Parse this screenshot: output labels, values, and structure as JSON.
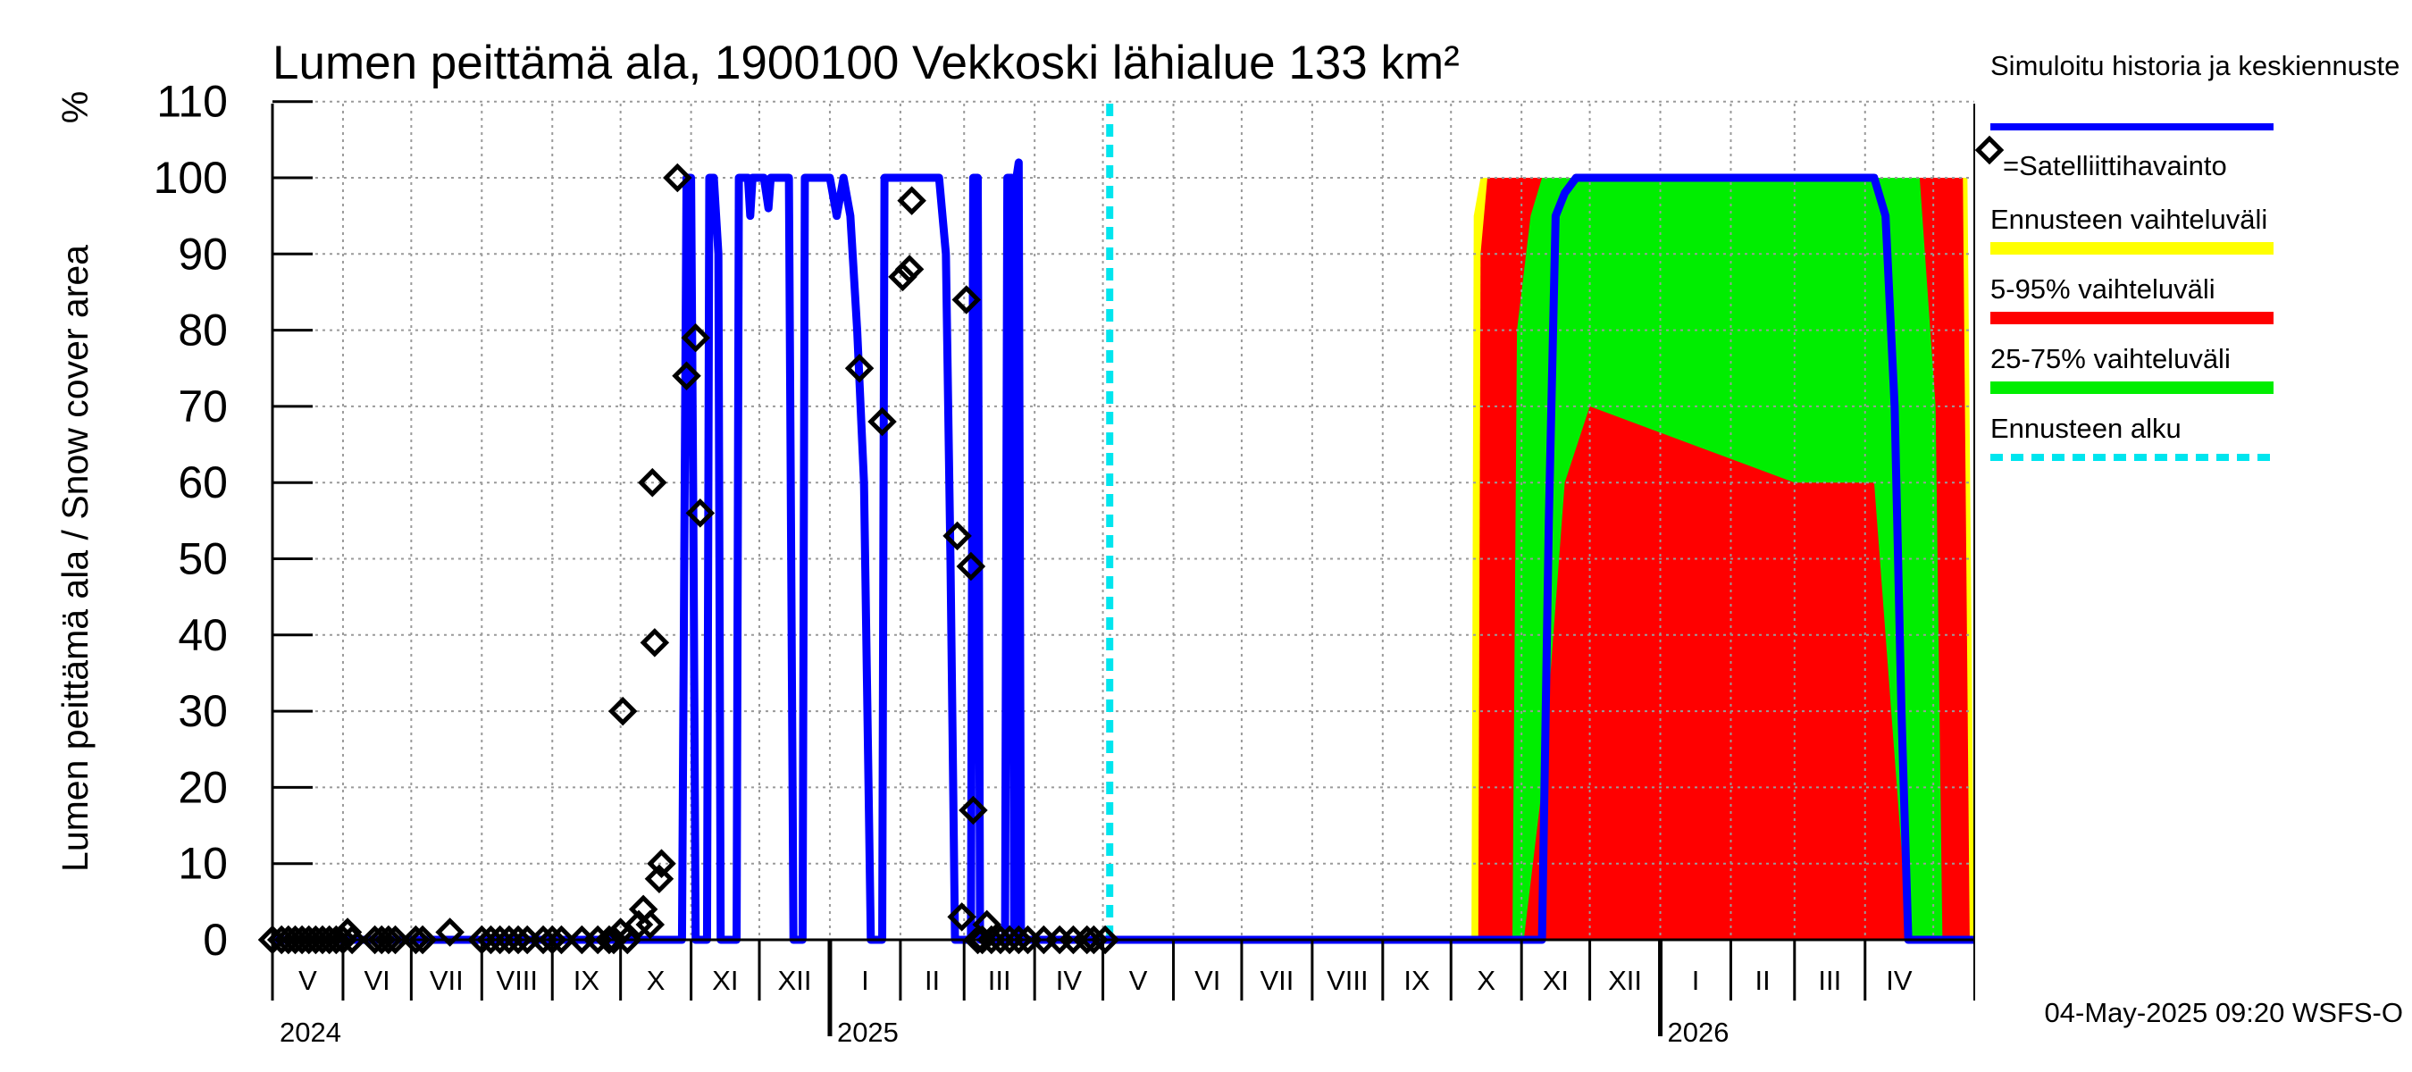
{
  "chart_data": {
    "type": "area",
    "title": "Lumen peittämä ala, 1900100 Vekkoski lähialue 133 km²",
    "ylabel": "Lumen peittämä ala / Snow cover area",
    "yunit": "%",
    "ylim": [
      0,
      110
    ],
    "yticks": [
      "0",
      "10",
      "20",
      "30",
      "40",
      "50",
      "60",
      "70",
      "80",
      "90",
      "100",
      "110"
    ],
    "xlim": [
      "2024-05-01",
      "2026-05-19"
    ],
    "grid": true,
    "months": [
      "V",
      "VI",
      "VII",
      "VIII",
      "IX",
      "X",
      "XI",
      "XII",
      "I",
      "II",
      "III",
      "IV",
      "V",
      "VI",
      "VII",
      "VIII",
      "IX",
      "X",
      "XI",
      "XII",
      "I",
      "II",
      "III",
      "IV"
    ],
    "years": [
      "2024",
      "2025",
      "2026"
    ],
    "forecast_start": "2025-05-04",
    "legend": {
      "position": "right",
      "entries": [
        {
          "label": "Simuloitu historia ja keskiennuste",
          "color": "#0000ff",
          "style": "line"
        },
        {
          "label": "=Satelliittihavainto",
          "color": "#000000",
          "style": "diamond"
        },
        {
          "label": "Ennusteen vaihteluväli",
          "color": "#ffff00",
          "style": "line"
        },
        {
          "label": "5-95% vaihteluväli",
          "color": "#ff0000",
          "style": "line"
        },
        {
          "label": "25-75% vaihteluväli",
          "color": "#00ee00",
          "style": "line"
        },
        {
          "label": "Ennusteen alku",
          "color": "#00e5ee",
          "style": "dashed"
        }
      ]
    },
    "series": [
      {
        "name": "Simuloitu historia ja keskiennuste",
        "color": "#0000ff",
        "points": [
          [
            "2024-05-01",
            0
          ],
          [
            "2024-10-28",
            0
          ],
          [
            "2024-10-30",
            100
          ],
          [
            "2024-11-01",
            100
          ],
          [
            "2024-11-02",
            55
          ],
          [
            "2024-11-03",
            0
          ],
          [
            "2024-11-08",
            0
          ],
          [
            "2024-11-09",
            100
          ],
          [
            "2024-11-11",
            100
          ],
          [
            "2024-11-13",
            90
          ],
          [
            "2024-11-14",
            0
          ],
          [
            "2024-11-21",
            0
          ],
          [
            "2024-11-22",
            100
          ],
          [
            "2024-11-26",
            100
          ],
          [
            "2024-11-27",
            95
          ],
          [
            "2024-11-28",
            100
          ],
          [
            "2024-12-03",
            100
          ],
          [
            "2024-12-05",
            96
          ],
          [
            "2024-12-06",
            100
          ],
          [
            "2024-12-14",
            100
          ],
          [
            "2024-12-16",
            0
          ],
          [
            "2024-12-20",
            0
          ],
          [
            "2024-12-21",
            100
          ],
          [
            "2025-01-01",
            100
          ],
          [
            "2025-01-04",
            95
          ],
          [
            "2025-01-07",
            100
          ],
          [
            "2025-01-10",
            95
          ],
          [
            "2025-01-13",
            80
          ],
          [
            "2025-01-16",
            60
          ],
          [
            "2025-01-19",
            0
          ],
          [
            "2025-01-24",
            0
          ],
          [
            "2025-01-25",
            100
          ],
          [
            "2025-02-18",
            100
          ],
          [
            "2025-02-21",
            90
          ],
          [
            "2025-02-23",
            50
          ],
          [
            "2025-02-25",
            0
          ],
          [
            "2025-03-04",
            0
          ],
          [
            "2025-03-05",
            100
          ],
          [
            "2025-03-07",
            100
          ],
          [
            "2025-03-08",
            0
          ],
          [
            "2025-03-19",
            0
          ],
          [
            "2025-03-20",
            100
          ],
          [
            "2025-03-22",
            100
          ],
          [
            "2025-03-23",
            0
          ],
          [
            "2025-03-24",
            100
          ],
          [
            "2025-03-25",
            102
          ],
          [
            "2025-03-26",
            0
          ],
          [
            "2025-11-10",
            0
          ],
          [
            "2025-11-13",
            55
          ],
          [
            "2025-11-16",
            95
          ],
          [
            "2025-11-20",
            98
          ],
          [
            "2025-11-25",
            100
          ],
          [
            "2026-04-05",
            100
          ],
          [
            "2026-04-10",
            95
          ],
          [
            "2026-04-14",
            70
          ],
          [
            "2026-04-17",
            30
          ],
          [
            "2026-04-20",
            0
          ],
          [
            "2026-05-19",
            0
          ]
        ]
      },
      {
        "name": "Ennusteen vaihteluväli",
        "color": "#ffff00",
        "upper": [
          [
            "2025-10-10",
            0
          ],
          [
            "2025-10-11",
            95
          ],
          [
            "2025-10-14",
            100
          ],
          [
            "2026-05-16",
            100
          ],
          [
            "2026-05-19",
            0
          ]
        ],
        "lower": [
          [
            "2025-10-10",
            0
          ],
          [
            "2026-05-19",
            0
          ]
        ]
      },
      {
        "name": "5-95% vaihteluväli",
        "color": "#ff0000",
        "upper": [
          [
            "2025-10-13",
            0
          ],
          [
            "2025-10-14",
            90
          ],
          [
            "2025-10-17",
            100
          ],
          [
            "2026-05-14",
            100
          ],
          [
            "2026-05-17",
            0
          ]
        ],
        "lower": [
          [
            "2025-10-13",
            0
          ],
          [
            "2026-05-17",
            0
          ]
        ]
      },
      {
        "name": "25-75% vaihteluväli",
        "color": "#00ee00",
        "upper": [
          [
            "2025-10-28",
            0
          ],
          [
            "2025-10-30",
            80
          ],
          [
            "2025-11-05",
            95
          ],
          [
            "2025-11-10",
            100
          ],
          [
            "2026-04-25",
            100
          ],
          [
            "2026-05-02",
            70
          ],
          [
            "2026-05-05",
            0
          ]
        ],
        "lower": [
          [
            "2025-10-28",
            0
          ],
          [
            "2025-11-02",
            0
          ],
          [
            "2025-11-10",
            20
          ],
          [
            "2025-11-20",
            60
          ],
          [
            "2025-12-01",
            70
          ],
          [
            "2026-03-01",
            60
          ],
          [
            "2026-04-05",
            60
          ],
          [
            "2026-04-15",
            20
          ],
          [
            "2026-04-20",
            0
          ],
          [
            "2026-05-05",
            0
          ]
        ]
      }
    ],
    "observations": {
      "name": "Satelliittihavainto",
      "points": [
        [
          "2024-05-01",
          0
        ],
        [
          "2024-05-05",
          0
        ],
        [
          "2024-05-08",
          0
        ],
        [
          "2024-05-11",
          0
        ],
        [
          "2024-05-14",
          0
        ],
        [
          "2024-05-17",
          0
        ],
        [
          "2024-05-20",
          0
        ],
        [
          "2024-05-23",
          0
        ],
        [
          "2024-05-26",
          0
        ],
        [
          "2024-05-29",
          0
        ],
        [
          "2024-06-01",
          0
        ],
        [
          "2024-06-03",
          1
        ],
        [
          "2024-06-05",
          0
        ],
        [
          "2024-06-15",
          0
        ],
        [
          "2024-06-18",
          0
        ],
        [
          "2024-06-21",
          0
        ],
        [
          "2024-06-24",
          0
        ],
        [
          "2024-07-03",
          0
        ],
        [
          "2024-07-06",
          0
        ],
        [
          "2024-07-18",
          1
        ],
        [
          "2024-08-01",
          0
        ],
        [
          "2024-08-05",
          0
        ],
        [
          "2024-08-09",
          0
        ],
        [
          "2024-08-13",
          0
        ],
        [
          "2024-08-17",
          0
        ],
        [
          "2024-08-21",
          0
        ],
        [
          "2024-08-28",
          0
        ],
        [
          "2024-09-01",
          0
        ],
        [
          "2024-09-05",
          0
        ],
        [
          "2024-09-14",
          0
        ],
        [
          "2024-09-21",
          0
        ],
        [
          "2024-09-26",
          0
        ],
        [
          "2024-09-28",
          0
        ],
        [
          "2024-10-01",
          1
        ],
        [
          "2024-10-02",
          30
        ],
        [
          "2024-10-04",
          0
        ],
        [
          "2024-10-09",
          2
        ],
        [
          "2024-10-11",
          4
        ],
        [
          "2024-10-14",
          2
        ],
        [
          "2024-10-16",
          39
        ],
        [
          "2024-10-15",
          60
        ],
        [
          "2024-10-18",
          8
        ],
        [
          "2024-10-19",
          10
        ],
        [
          "2024-10-26",
          100
        ],
        [
          "2024-10-30",
          74
        ],
        [
          "2024-11-03",
          79
        ],
        [
          "2024-11-05",
          56
        ],
        [
          "2025-01-14",
          75
        ],
        [
          "2025-01-24",
          68
        ],
        [
          "2025-02-02",
          87
        ],
        [
          "2025-02-05",
          88
        ],
        [
          "2025-02-06",
          97
        ],
        [
          "2025-02-26",
          53
        ],
        [
          "2025-02-28",
          3
        ],
        [
          "2025-03-02",
          84
        ],
        [
          "2025-03-04",
          49
        ],
        [
          "2025-03-05",
          17
        ],
        [
          "2025-03-07",
          0
        ],
        [
          "2025-03-09",
          0
        ],
        [
          "2025-03-11",
          2
        ],
        [
          "2025-03-13",
          0
        ],
        [
          "2025-03-17",
          0
        ],
        [
          "2025-03-21",
          0
        ],
        [
          "2025-03-25",
          0
        ],
        [
          "2025-03-29",
          0
        ],
        [
          "2025-04-05",
          0
        ],
        [
          "2025-04-12",
          0
        ],
        [
          "2025-04-18",
          0
        ],
        [
          "2025-04-24",
          0
        ],
        [
          "2025-04-27",
          0
        ],
        [
          "2025-05-02",
          0
        ]
      ]
    }
  },
  "footer": {
    "timestamp": "04-May-2025 09:20 WSFS-O"
  }
}
